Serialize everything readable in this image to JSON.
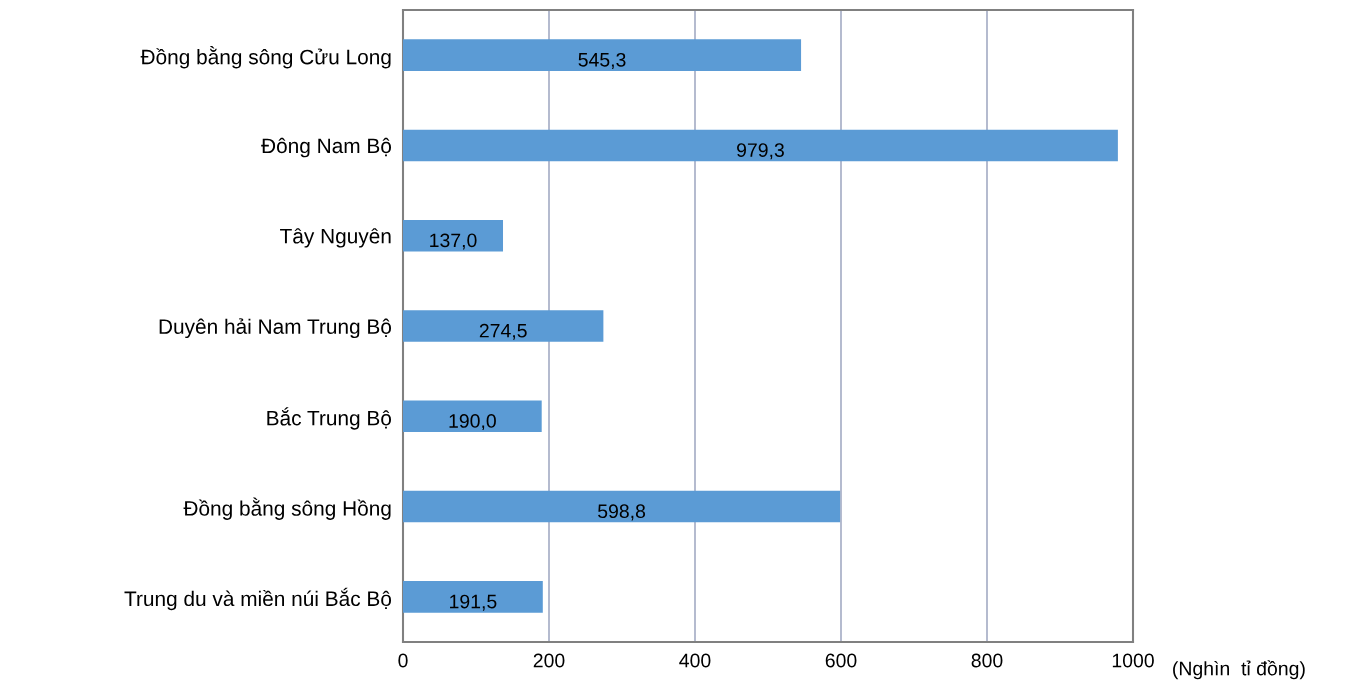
{
  "chart_data": {
    "type": "bar",
    "orientation": "horizontal",
    "categories": [
      "Đồng bằng sông Cửu Long",
      "Đông Nam Bộ",
      "Tây Nguyên",
      "Duyên hải Nam Trung Bộ",
      "Bắc Trung Bộ",
      "Đồng bằng sông Hồng",
      "Trung du và miền núi Bắc Bộ"
    ],
    "values": [
      545.3,
      979.3,
      137.0,
      274.5,
      190.0,
      598.8,
      191.5
    ],
    "value_labels": [
      "545,3",
      "979,3",
      "137,0",
      "274,5",
      "190,0",
      "598,8",
      "191,5"
    ],
    "color": "#5b9bd5",
    "xlabel": "(Nghìn  tỉ đồng)",
    "xlim": [
      0,
      1000
    ],
    "xticks": [
      0,
      200,
      400,
      600,
      800,
      1000
    ],
    "grid": "x",
    "legend": false
  }
}
